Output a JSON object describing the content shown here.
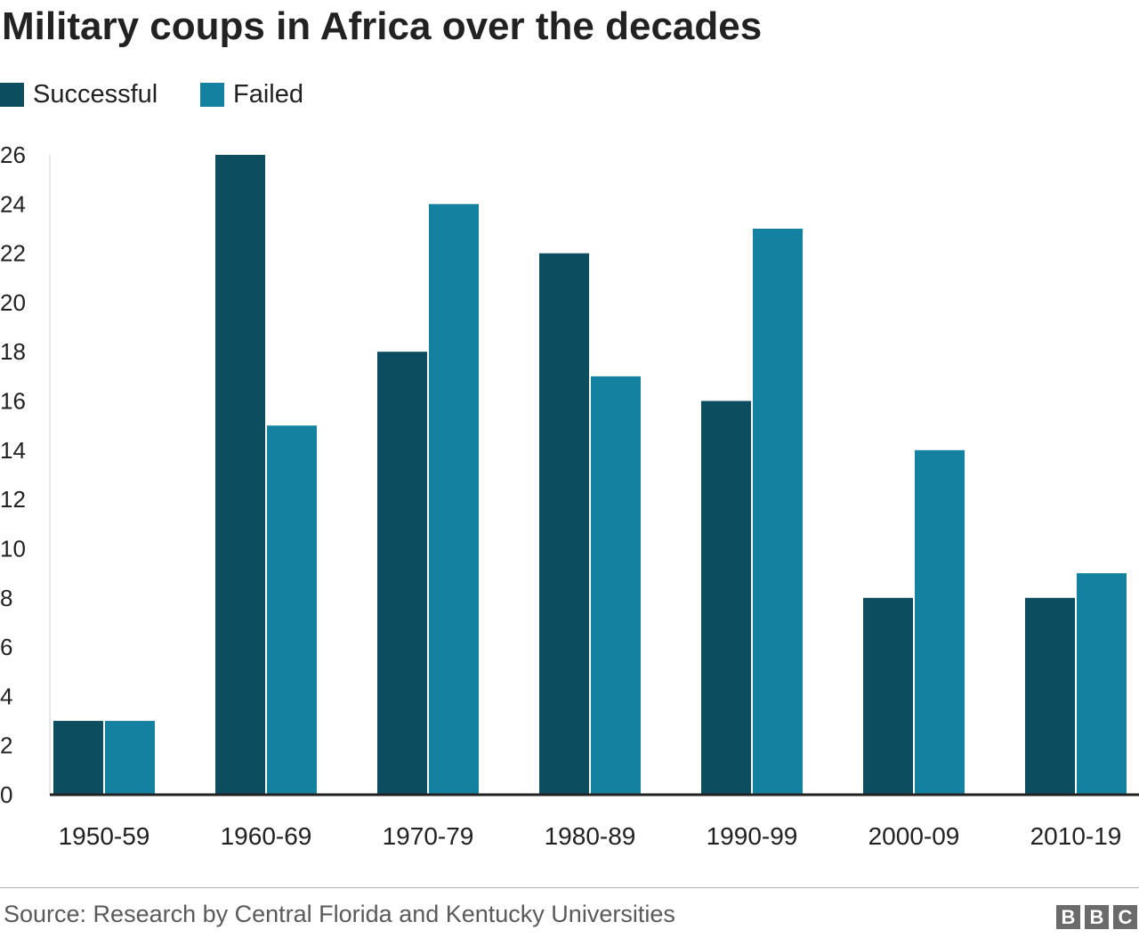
{
  "title": "Military coups in Africa over the decades",
  "legend": [
    {
      "label": "Successful",
      "color": "#0c4e60"
    },
    {
      "label": "Failed",
      "color": "#1581a0"
    }
  ],
  "source": "Source: Research by Central Florida and Kentucky Universities",
  "logo_letters": [
    "B",
    "B",
    "C"
  ],
  "chart_data": {
    "type": "bar",
    "title": "Military coups in Africa over the decades",
    "xlabel": "",
    "ylabel": "",
    "ylim": [
      0,
      26
    ],
    "yticks": [
      0,
      2,
      4,
      6,
      8,
      10,
      12,
      14,
      16,
      18,
      20,
      22,
      24,
      26
    ],
    "grid": false,
    "legend_position": "top-left",
    "categories": [
      "1950-59",
      "1960-69",
      "1970-79",
      "1980-89",
      "1990-99",
      "2000-09",
      "2010-19"
    ],
    "series": [
      {
        "name": "Successful",
        "color": "#0c4e60",
        "values": [
          3,
          26,
          18,
          22,
          16,
          8,
          8
        ]
      },
      {
        "name": "Failed",
        "color": "#1581a0",
        "values": [
          3,
          15,
          24,
          17,
          23,
          14,
          9
        ]
      }
    ]
  }
}
